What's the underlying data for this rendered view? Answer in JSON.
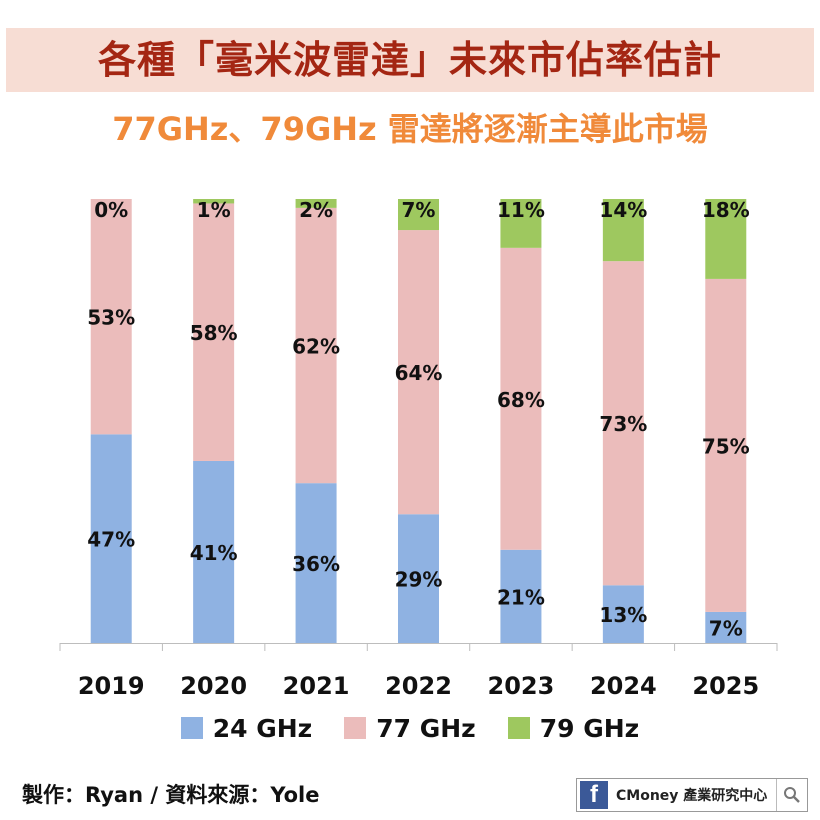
{
  "header": {
    "title": "各種「毫米波雷達」未來市佔率估計",
    "subtitle": "77GHz、79GHz 雷達將逐漸主導此市場"
  },
  "footer": {
    "credit": "製作：Ryan / 資料來源：Yole",
    "brand_text": "CMoney 產業研究中心",
    "brand_icon": "facebook-icon",
    "search_icon": "search-icon"
  },
  "colors": {
    "title": "#a42613",
    "title_band": "#f7ddd4",
    "subtitle": "#f08a3a",
    "ghz24": "#8fb2e2",
    "ghz77": "#ebbcbb",
    "ghz79": "#9ec85f"
  },
  "chart_data": {
    "type": "bar",
    "stacked": true,
    "categories": [
      "2019",
      "2020",
      "2021",
      "2022",
      "2023",
      "2024",
      "2025"
    ],
    "series": [
      {
        "name": "24 GHz",
        "color": "#8fb2e2",
        "values": [
          47,
          41,
          36,
          29,
          21,
          13,
          7
        ]
      },
      {
        "name": "77 GHz",
        "color": "#ebbcbb",
        "values": [
          53,
          58,
          62,
          64,
          68,
          73,
          75
        ]
      },
      {
        "name": "79 GHz",
        "color": "#9ec85f",
        "values": [
          0,
          1,
          2,
          7,
          11,
          14,
          18
        ]
      }
    ],
    "value_suffix": "%",
    "ylim": [
      0,
      100
    ],
    "legend_position": "bottom",
    "grid": false
  }
}
